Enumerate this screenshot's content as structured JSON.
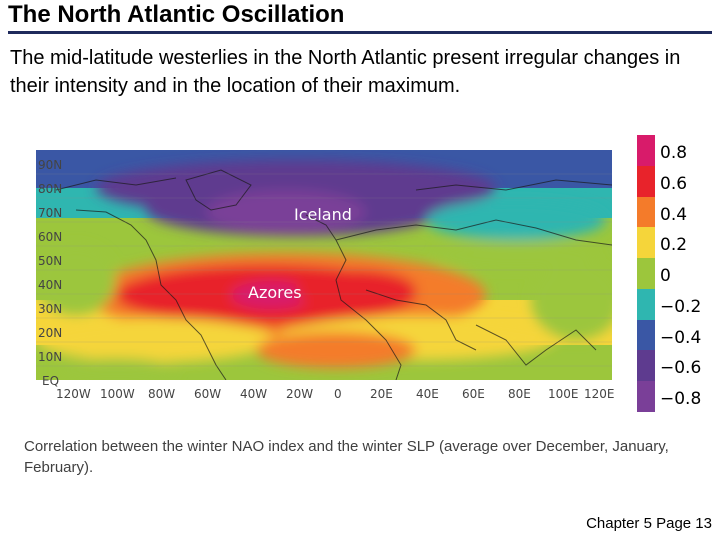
{
  "slide": {
    "title": "The North Atlantic Oscillation",
    "intro": "The mid-latitude westerlies in the North Atlantic present irregular changes in their intensity and in the location of their maximum.",
    "caption": "Correlation between the winter NAO index and the winter SLP (average over December, January, February).",
    "footer": "Chapter 5 Page 13"
  },
  "map": {
    "lat_labels": [
      "90N",
      "80N",
      "70N",
      "60N",
      "50N",
      "40N",
      "30N",
      "20N",
      "10N",
      "EQ"
    ],
    "lon_labels": [
      "120W",
      "100W",
      "80W",
      "60W",
      "40W",
      "20W",
      "0",
      "20E",
      "40E",
      "60E",
      "80E",
      "100E",
      "120E"
    ],
    "region_labels": {
      "north": "Iceland",
      "south": "Azores"
    }
  },
  "colorbar": {
    "colors": [
      "#d81b6a",
      "#e8232b",
      "#f47b2a",
      "#f5d53a",
      "#9cc63c",
      "#2fb6b0",
      "#3a57a5",
      "#5e3b8f",
      "#7a3f98"
    ],
    "tick_labels": [
      "0.8",
      "0.6",
      "0.4",
      "0.2",
      "0",
      "−0.2",
      "−0.4",
      "−0.6",
      "−0.8"
    ]
  }
}
